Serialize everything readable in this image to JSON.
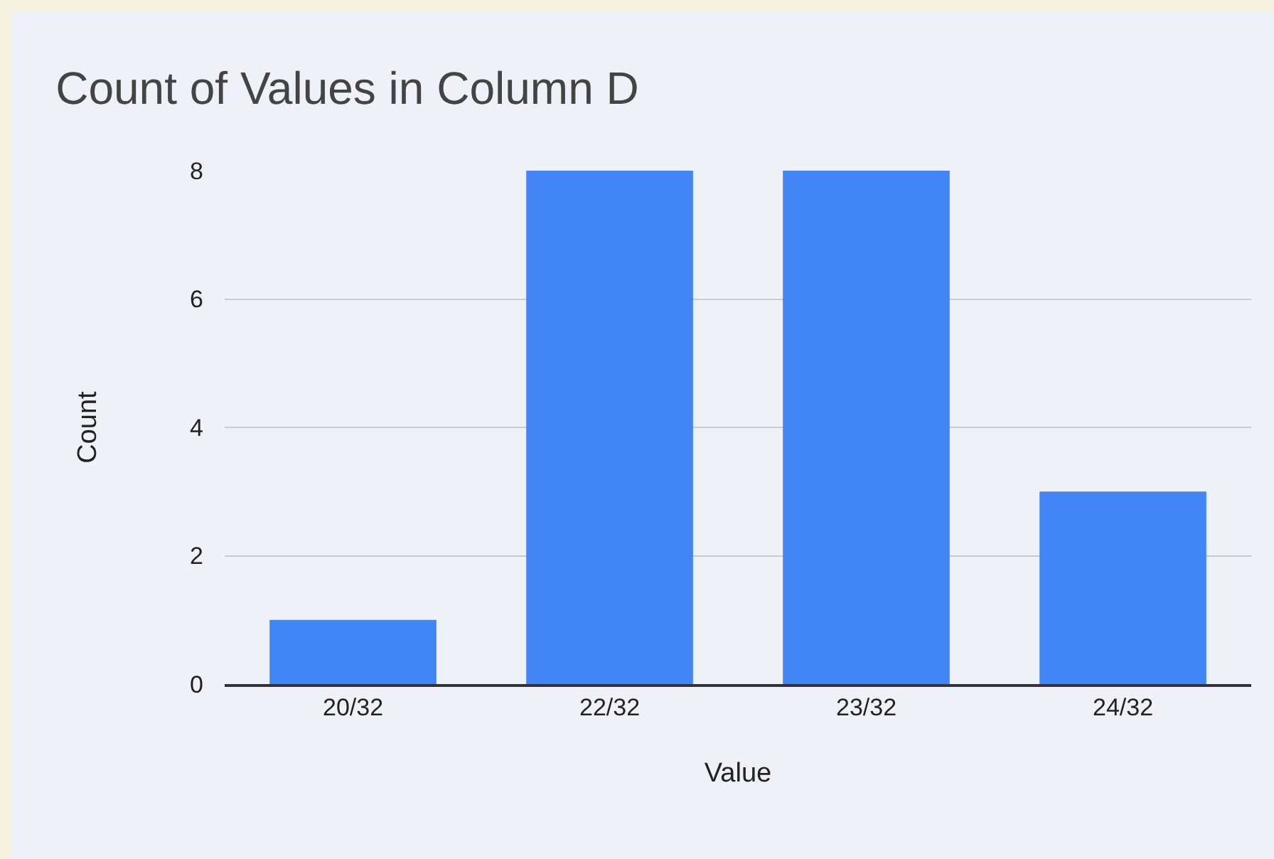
{
  "chart_data": {
    "type": "bar",
    "title": "Count of Values in Column D",
    "xlabel": "Value",
    "ylabel": "Count",
    "categories": [
      "20/32",
      "22/32",
      "23/32",
      "24/32"
    ],
    "values": [
      1,
      8,
      8,
      3
    ],
    "color": "#4285f4",
    "ylim": [
      0,
      8
    ],
    "yticks": [
      0,
      2,
      4,
      6,
      8
    ],
    "grid": "y",
    "legend": false
  }
}
